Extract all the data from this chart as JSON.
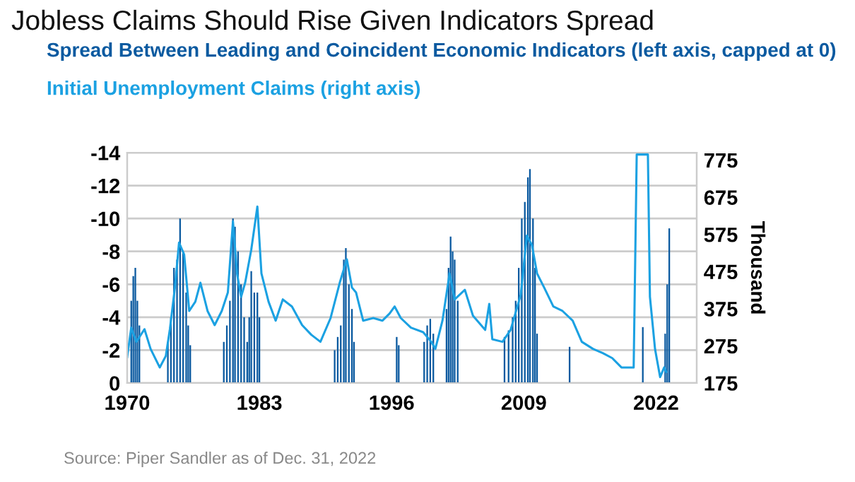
{
  "chart_data": {
    "type": "bar",
    "title": "Jobless Claims Should Rise Given Indicators Spread",
    "xlim": [
      1970,
      2026
    ],
    "xticks": [
      1970,
      1983,
      1996,
      2009,
      2022
    ],
    "ylim": [
      0,
      -14
    ],
    "yticks": [
      -14,
      -12,
      -10,
      -8,
      -6,
      -4,
      -2,
      0
    ],
    "y2lim": [
      175,
      795
    ],
    "y2ticks": [
      175,
      275,
      375,
      475,
      575,
      675,
      775
    ],
    "y2label": "Thousand",
    "grid": "y",
    "legend": "top",
    "series": [
      {
        "name": "Spread Between Leading and Coincident Economic Indicators (left axis, capped at 0)",
        "color": "#0b5aa0",
        "x": [
          1970.4,
          1970.6,
          1970.8,
          1971.0,
          1971.2,
          1974.0,
          1974.3,
          1974.6,
          1974.9,
          1975.2,
          1975.5,
          1975.8,
          1976.0,
          1976.2,
          1979.5,
          1979.8,
          1980.1,
          1980.4,
          1980.6,
          1980.9,
          1981.2,
          1981.5,
          1981.8,
          1982.0,
          1982.2,
          1982.5,
          1982.8,
          1983.0,
          1990.4,
          1990.7,
          1991.0,
          1991.3,
          1991.5,
          1991.8,
          1992.1,
          1992.3,
          1996.5,
          1996.7,
          1999.2,
          1999.5,
          1999.8,
          2000.1,
          2001.4,
          2001.6,
          2001.8,
          2002.0,
          2002.2,
          2002.5,
          2007.1,
          2007.5,
          2007.9,
          2008.2,
          2008.5,
          2008.8,
          2009.1,
          2009.4,
          2009.6,
          2009.9,
          2010.1,
          2010.3,
          2013.5,
          2020.7,
          2022.9,
          2023.1,
          2023.3
        ],
        "values": [
          -5,
          -6.5,
          -7,
          -5,
          -3.5,
          -2.5,
          -4,
          -7,
          -7.5,
          -10,
          -8,
          -5.5,
          -3.5,
          -2.3,
          -2.5,
          -3.5,
          -5,
          -10,
          -9.5,
          -8,
          -6,
          -4,
          -2.5,
          -4,
          -6.8,
          -5.5,
          -5.5,
          -4,
          -2,
          -2.8,
          -3.5,
          -7.5,
          -8.2,
          -6,
          -4.5,
          -2.5,
          -2.8,
          -2.3,
          -2.5,
          -3.5,
          -3.9,
          -3,
          -4.5,
          -7,
          -8.9,
          -8,
          -7.5,
          -5,
          -2.8,
          -3.2,
          -4,
          -5,
          -7,
          -10,
          -11,
          -12.5,
          -13,
          -10,
          -7,
          -3,
          -2.2,
          -3.4,
          -3,
          -6,
          -9.4
        ]
      },
      {
        "name": "Initial Unemployment Claims (right axis)",
        "type": "line",
        "axis": "y2",
        "color": "#1ba1e2",
        "x": [
          1970.0,
          1970.4,
          1970.9,
          1971.7,
          1972.3,
          1973.2,
          1973.8,
          1974.2,
          1974.7,
          1975.1,
          1975.6,
          1976.1,
          1976.7,
          1977.2,
          1977.9,
          1978.6,
          1979.3,
          1979.9,
          1980.4,
          1980.8,
          1981.2,
          1981.6,
          1982.2,
          1982.8,
          1983.2,
          1983.9,
          1984.6,
          1985.3,
          1986.2,
          1987.2,
          1988.1,
          1989.0,
          1990.0,
          1990.9,
          1991.6,
          1992.1,
          1992.5,
          1993.2,
          1994.2,
          1995.1,
          1995.8,
          1996.3,
          1996.9,
          1997.9,
          1999.1,
          1999.9,
          2000.3,
          2001.0,
          2001.7,
          2002.2,
          2003.2,
          2004.0,
          2005.2,
          2005.6,
          2005.9,
          2006.9,
          2007.7,
          2008.7,
          2009.3,
          2009.8,
          2010.3,
          2011.0,
          2011.9,
          2012.8,
          2013.8,
          2014.7,
          2015.8,
          2016.8,
          2017.7,
          2018.6,
          2019.8,
          2020.1,
          2020.5,
          2021.2,
          2021.4,
          2021.9,
          2022.4,
          2022.8,
          2023.0
        ],
        "values": [
          245,
          324,
          286,
          320,
          267,
          217,
          248,
          320,
          434,
          553,
          521,
          369,
          394,
          445,
          369,
          331,
          369,
          419,
          610,
          470,
          407,
          445,
          534,
          650,
          470,
          394,
          343,
          400,
          381,
          331,
          305,
          286,
          350,
          445,
          508,
          432,
          419,
          343,
          350,
          343,
          362,
          381,
          350,
          324,
          312,
          286,
          267,
          343,
          470,
          400,
          426,
          356,
          318,
          388,
          293,
          286,
          318,
          413,
          572,
          546,
          470,
          432,
          381,
          369,
          343,
          286,
          267,
          255,
          242,
          217,
          217,
          790,
          790,
          790,
          407,
          267,
          191,
          217,
          205
        ]
      }
    ],
    "annotations": [
      "Source: Piper Sandler as of Dec. 31, 2022"
    ]
  }
}
